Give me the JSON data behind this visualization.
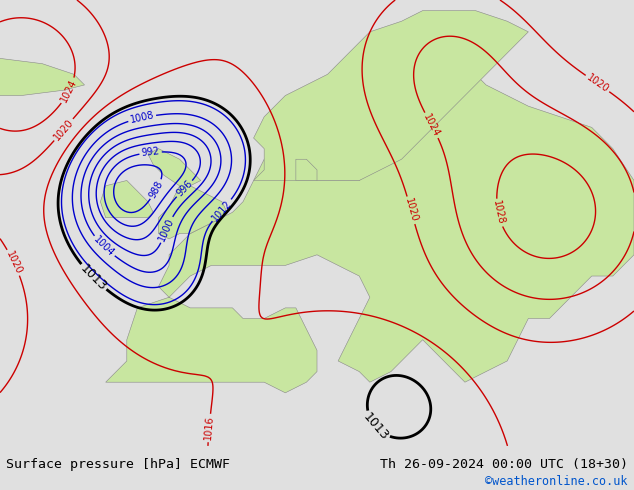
{
  "title_left": "Surface pressure [hPa] ECMWF",
  "title_right": "Th 26-09-2024 00:00 UTC (18+30)",
  "credit": "©weatheronline.co.uk",
  "bg_color": "#c8dff0",
  "land_color": "#c8e6a0",
  "land_edge_color": "#888888",
  "text_color_black": "#000000",
  "text_color_blue": "#0055cc",
  "text_color_red": "#cc0000",
  "footer_bg": "#e0e0e0",
  "figsize": [
    6.34,
    4.9
  ],
  "dpi": 100,
  "contour_low_color": "#0000cc",
  "contour_high_color": "#cc0000",
  "contour_mid_color": "#000000",
  "pressure_base": 1013.0,
  "pressure_min": 980,
  "pressure_max": 1036,
  "pressure_step": 4
}
